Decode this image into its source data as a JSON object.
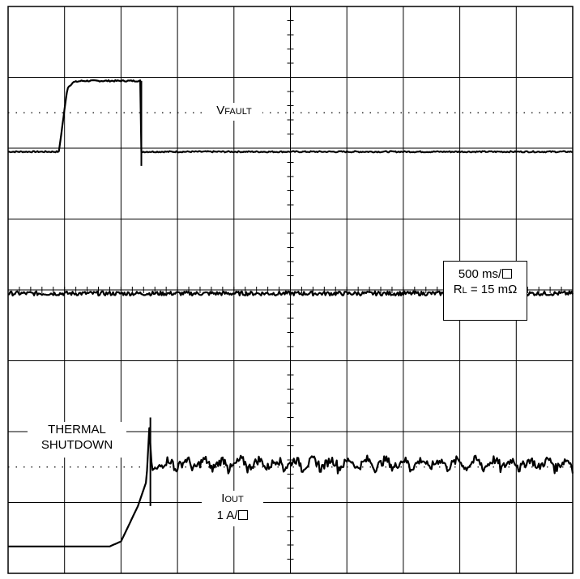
{
  "chart_data": {
    "type": "line",
    "title": "",
    "grid": true,
    "divisions": {
      "x": 10,
      "y": 8
    },
    "time_per_div_ms": 500,
    "series": [
      {
        "name": "VFAULT",
        "x_div": [
          0,
          0.9,
          1.05,
          1.15,
          1.3,
          2.0,
          2.35,
          2.36,
          2.5,
          10
        ],
        "y_div": [
          5.95,
          5.95,
          6.85,
          6.93,
          6.95,
          6.95,
          6.95,
          5.95,
          5.95,
          5.95
        ],
        "noise": 0.02
      },
      {
        "name": "",
        "x_div": [
          0,
          10
        ],
        "y_div": [
          3.95,
          3.95
        ],
        "noise": 0.06
      },
      {
        "name": "IOUT",
        "x_div": [
          0,
          1.8,
          2.0,
          2.15,
          2.3,
          2.45,
          2.5,
          2.55,
          2.62,
          10
        ],
        "y_div": [
          0.38,
          0.38,
          0.45,
          0.7,
          0.95,
          1.3,
          2.05,
          1.45,
          1.5,
          1.5
        ],
        "ripple": 0.22,
        "ripple_start_div": 2.62
      }
    ]
  },
  "labels": {
    "vfault_main": "V",
    "vfault_sub": "FAULT",
    "scale_time": "500 ms/",
    "rl_main": "R",
    "rl_sub": "L",
    "rl_value": " = 15 mΩ",
    "thermal_line1": "THERMAL",
    "thermal_line2": "SHUTDOWN",
    "iout_main": "I",
    "iout_sub": "OUT",
    "iout_scale": "1 A/"
  },
  "colors": {
    "trace": "#000000",
    "grid": "#000000"
  }
}
